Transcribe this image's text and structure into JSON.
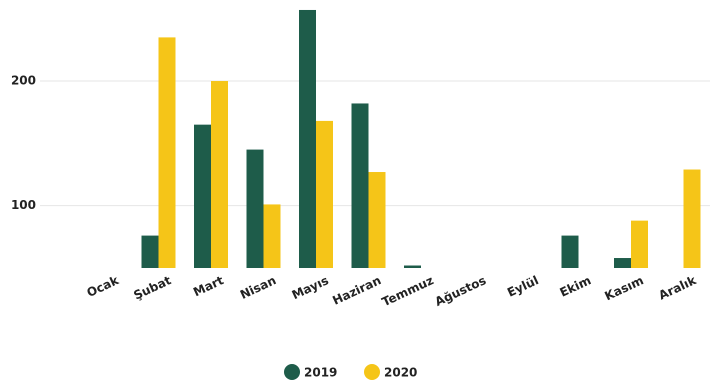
{
  "chart_data": {
    "type": "bar",
    "categories": [
      "Ocak",
      "Şubat",
      "Mart",
      "Nisan",
      "Mayıs",
      "Haziran",
      "Temmuz",
      "Ağustos",
      "Eylül",
      "Ekim",
      "Kasım",
      "Aralık"
    ],
    "series": [
      {
        "name": "2019",
        "color": "#1e5c4a",
        "values": [
          null,
          76,
          165,
          145,
          257,
          182,
          52,
          null,
          null,
          76,
          58,
          null
        ]
      },
      {
        "name": "2020",
        "color": "#f5c518",
        "values": [
          null,
          235,
          200,
          101,
          168,
          127,
          null,
          null,
          null,
          null,
          88,
          129
        ]
      }
    ],
    "ylim": [
      50,
      265
    ],
    "yticks": [
      100,
      200
    ],
    "grid": true,
    "legend": "bottom"
  }
}
